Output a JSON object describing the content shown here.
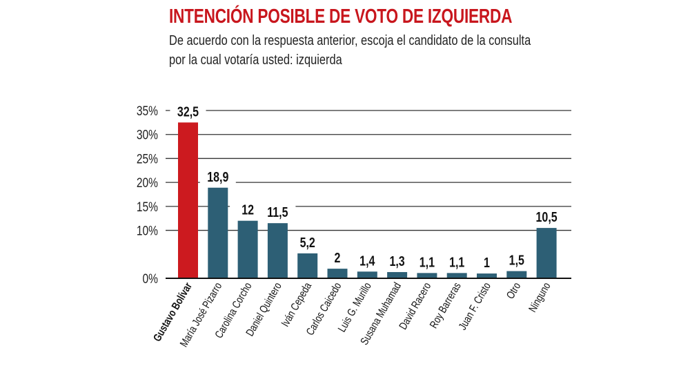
{
  "chart_data": {
    "type": "bar",
    "title": "INTENCIÓN POSIBLE DE VOTO DE IZQUIERDA",
    "subtitle_lines": [
      "De acuerdo con la respuesta anterior, escoja el candidato de la consulta",
      "por la cual votaría usted: izquierda"
    ],
    "categories": [
      "Gustavo Bolívar",
      "María José Pizarro",
      "Carolina Corcho",
      "Daniel Quintero",
      "Iván Cepeda",
      "Carlos Caicedo",
      "Luis G. Murillo",
      "Susana Muhamad",
      "David Racero",
      "Roy Barreras",
      "Juan F. Cristo",
      "Otro",
      "Ninguno"
    ],
    "values": [
      32.5,
      18.9,
      12,
      11.5,
      5.2,
      2,
      1.4,
      1.3,
      1.1,
      1.1,
      1,
      1.5,
      10.5
    ],
    "value_labels": [
      "32,5",
      "18,9",
      "12",
      "11,5",
      "5,2",
      "2",
      "1,4",
      "1,3",
      "1,1",
      "1,1",
      "1",
      "1,5",
      "10,5"
    ],
    "yticks": [
      "0%",
      "10%",
      "15%",
      "20%",
      "25%",
      "30%",
      "35%"
    ],
    "ytick_values": [
      0,
      10,
      15,
      20,
      25,
      30,
      35
    ],
    "ylim": [
      0,
      35
    ],
    "grid": true,
    "highlight_index": 0,
    "colors": {
      "highlight": "#cc1a1f",
      "bar": "#2d5f75",
      "title": "#c8161d",
      "grid": "#333333"
    }
  }
}
